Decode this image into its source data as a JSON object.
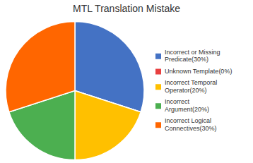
{
  "chart_data": {
    "type": "pie",
    "title": "MTL Translation Mistake",
    "categories": [
      "Incorrect or Missing\nPredicate(30%)",
      "Unknown Template(0%)",
      "Incorrect Temporal\nOperator(20%)",
      "Incorrect\nArgument(20%)",
      "Incorrect Logical\nConnectives(30%)"
    ],
    "values": [
      30,
      0.001,
      20,
      20,
      30
    ],
    "colors": [
      "#4472C4",
      "#E84040",
      "#FFC000",
      "#4CAF50",
      "#FF6600"
    ],
    "legend": "right"
  }
}
